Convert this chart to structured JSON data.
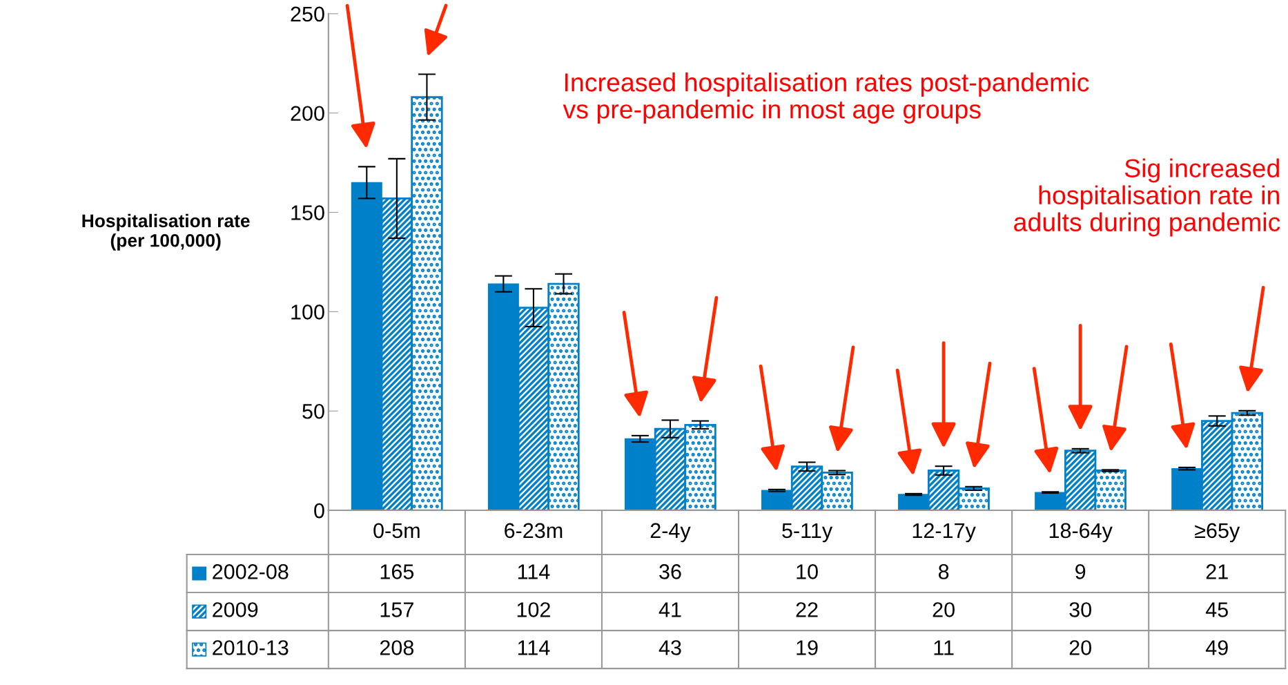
{
  "chart_data": {
    "type": "bar",
    "ylabel": "Hospitalisation rate\n(per 100,000)",
    "categories": [
      "0-5m",
      "6-23m",
      "2-4y",
      "5-11y",
      "12-17y",
      "18-64y",
      "≥65y"
    ],
    "series": [
      {
        "name": "2002-08",
        "color": "#0080c8",
        "values": [
          165,
          114,
          36,
          10,
          8,
          9,
          21
        ],
        "errors": [
          8,
          4,
          1.6,
          0.5,
          0.4,
          0.3,
          0.6
        ]
      },
      {
        "name": "2009",
        "color": "#0080c8",
        "values": [
          157,
          102,
          41,
          22,
          20,
          30,
          45
        ],
        "errors": [
          20,
          9.5,
          4.4,
          2.2,
          2.2,
          1,
          2.5
        ]
      },
      {
        "name": "2010-13",
        "color": "#0080c8",
        "values": [
          208,
          114,
          43,
          19,
          11,
          20,
          49
        ],
        "errors": [
          11.5,
          5,
          2,
          1,
          0.9,
          0.4,
          1.1
        ]
      }
    ],
    "ylim": [
      0,
      250
    ],
    "yticks": [
      0,
      50,
      100,
      150,
      200,
      250
    ],
    "data_labels": true,
    "grid": false,
    "legend": "bottom left",
    "annotations": [
      "Increased hospitalisation rates post-pandemic\nvs pre-pandemic in most age groups",
      "Sig increased\nhospitalisation rate in\nadults during pandemic"
    ]
  }
}
